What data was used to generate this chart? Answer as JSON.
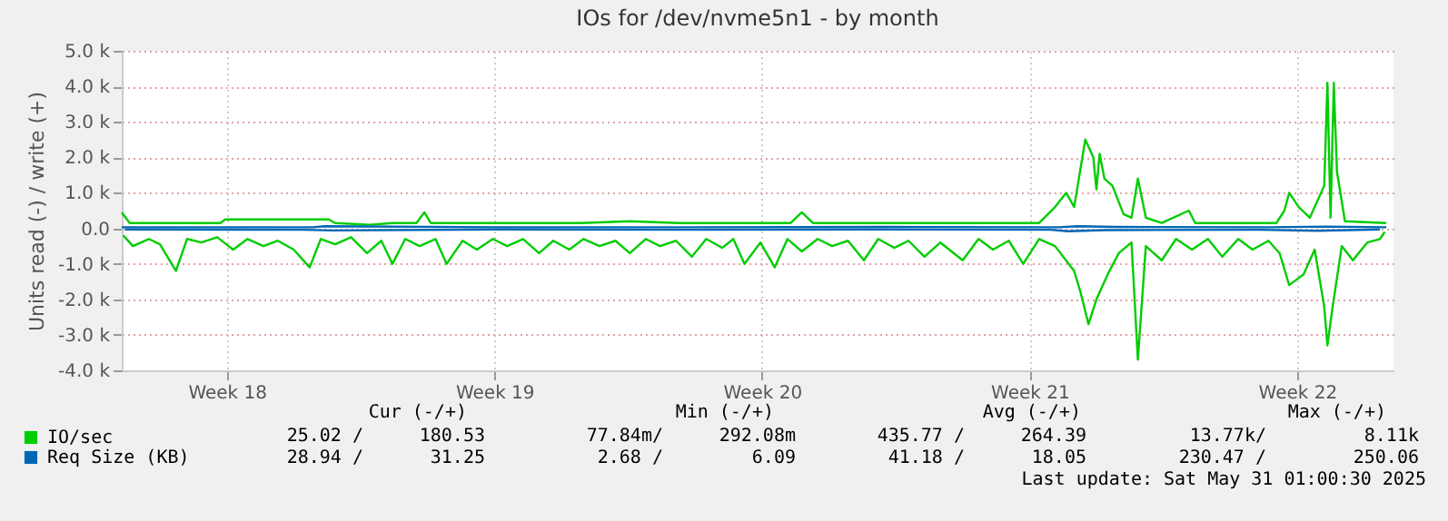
{
  "chart_data": {
    "type": "line",
    "title": "IOs for /dev/nvme5n1 - by month",
    "ylabel": "Units read (-) / write (+)",
    "xlim": [
      "2025-04-28T18:00",
      "2025-06-01T00:30"
    ],
    "xticks": [
      {
        "value": "2025-05-01T12:00",
        "label": "Week 18"
      },
      {
        "value": "2025-05-08T12:00",
        "label": "Week 19"
      },
      {
        "value": "2025-05-15T12:00",
        "label": "Week 20"
      },
      {
        "value": "2025-05-22T12:00",
        "label": "Week 21"
      },
      {
        "value": "2025-05-29T12:00",
        "label": "Week 22"
      }
    ],
    "ylim": [
      -4000,
      5000
    ],
    "yticks": [
      {
        "value": 5000,
        "label": "5.0 k"
      },
      {
        "value": 4000,
        "label": "4.0 k"
      },
      {
        "value": 3000,
        "label": "3.0 k"
      },
      {
        "value": 2000,
        "label": "2.0 k"
      },
      {
        "value": 1000,
        "label": "1.0 k"
      },
      {
        "value": 0,
        "label": "0.0"
      },
      {
        "value": -1000,
        "label": "-1.0 k"
      },
      {
        "value": -2000,
        "label": "-2.0 k"
      },
      {
        "value": -3000,
        "label": "-3.0 k"
      },
      {
        "value": -4000,
        "label": "-4.0 k"
      }
    ],
    "grid": true,
    "legend": "bottom left",
    "series": [
      {
        "name": "IO/sec",
        "color": "#00cc00",
        "x": [
          "2025-04-28T18:00",
          "2025-04-28T23:00",
          "2025-05-01T08:00",
          "2025-05-01T11:00",
          "2025-05-04T04:00",
          "2025-05-04T08:00",
          "2025-05-05T06:00",
          "2025-05-05T20:00",
          "2025-05-06T11:00",
          "2025-05-06T16:00",
          "2025-05-06T20:00",
          "2025-05-10T18:00",
          "2025-05-12T01:00",
          "2025-05-13T08:00",
          "2025-05-16T06:00",
          "2025-05-16T13:00",
          "2025-05-16T20:00",
          "2025-05-22T18:00",
          "2025-05-23T04:00",
          "2025-05-23T11:00",
          "2025-05-23T16:00",
          "2025-05-23T23:00",
          "2025-05-24T04:00",
          "2025-05-24T06:00",
          "2025-05-24T08:00",
          "2025-05-24T11:00",
          "2025-05-24T16:00",
          "2025-05-24T23:00",
          "2025-05-25T04:00",
          "2025-05-25T08:00",
          "2025-05-25T13:00",
          "2025-05-25T23:00",
          "2025-05-26T16:00",
          "2025-05-26T20:00",
          "2025-05-28T23:00",
          "2025-05-29T04:00",
          "2025-05-29T07:00",
          "2025-05-29T13:00",
          "2025-05-29T20:00",
          "2025-05-30T05:00",
          "2025-05-30T07:00",
          "2025-05-30T09:00",
          "2025-05-30T11:00",
          "2025-05-30T13:00",
          "2025-05-30T18:00",
          "2025-05-31T20:00"
        ],
        "values": [
          450,
          150,
          150,
          250,
          250,
          150,
          100,
          150,
          150,
          450,
          150,
          150,
          200,
          150,
          150,
          450,
          150,
          150,
          600,
          1000,
          600,
          2500,
          2000,
          1100,
          2100,
          1400,
          1200,
          400,
          300,
          1400,
          300,
          150,
          500,
          150,
          150,
          500,
          1000,
          600,
          300,
          1200,
          4100,
          300,
          4100,
          1600,
          200,
          150
        ]
      },
      {
        "color": "#00cc00",
        "x": [
          "2025-04-28T19:00",
          "2025-04-29T01:00",
          "2025-04-29T11:00",
          "2025-04-29T18:00",
          "2025-04-30T04:00",
          "2025-04-30T11:00",
          "2025-04-30T20:00",
          "2025-05-01T06:00",
          "2025-05-01T16:00",
          "2025-05-02T01:00",
          "2025-05-02T11:00",
          "2025-05-02T20:00",
          "2025-05-03T06:00",
          "2025-05-03T16:00",
          "2025-05-03T23:00",
          "2025-05-04T08:00",
          "2025-05-04T18:00",
          "2025-05-05T04:00",
          "2025-05-05T13:00",
          "2025-05-05T20:00",
          "2025-05-06T04:00",
          "2025-05-06T13:00",
          "2025-05-06T23:00",
          "2025-05-07T06:00",
          "2025-05-07T16:00",
          "2025-05-08T01:00",
          "2025-05-08T11:00",
          "2025-05-08T20:00",
          "2025-05-09T06:00",
          "2025-05-09T16:00",
          "2025-05-10T01:00",
          "2025-05-10T11:00",
          "2025-05-10T20:00",
          "2025-05-11T06:00",
          "2025-05-11T16:00",
          "2025-05-12T01:00",
          "2025-05-12T11:00",
          "2025-05-12T20:00",
          "2025-05-13T06:00",
          "2025-05-13T16:00",
          "2025-05-14T01:00",
          "2025-05-14T11:00",
          "2025-05-14T18:00",
          "2025-05-15T01:00",
          "2025-05-15T11:00",
          "2025-05-15T20:00",
          "2025-05-16T04:00",
          "2025-05-16T13:00",
          "2025-05-16T23:00",
          "2025-05-17T08:00",
          "2025-05-17T18:00",
          "2025-05-18T04:00",
          "2025-05-18T13:00",
          "2025-05-18T23:00",
          "2025-05-19T08:00",
          "2025-05-19T18:00",
          "2025-05-20T04:00",
          "2025-05-20T18:00",
          "2025-05-21T04:00",
          "2025-05-21T13:00",
          "2025-05-21T23:00",
          "2025-05-22T08:00",
          "2025-05-22T18:00",
          "2025-05-23T04:00",
          "2025-05-23T16:00",
          "2025-05-23T20:00",
          "2025-05-24T01:00",
          "2025-05-24T06:00",
          "2025-05-24T13:00",
          "2025-05-24T20:00",
          "2025-05-25T04:00",
          "2025-05-25T08:00",
          "2025-05-25T13:00",
          "2025-05-25T23:00",
          "2025-05-26T08:00",
          "2025-05-26T18:00",
          "2025-05-27T04:00",
          "2025-05-27T13:00",
          "2025-05-27T23:00",
          "2025-05-28T08:00",
          "2025-05-28T18:00",
          "2025-05-29T01:00",
          "2025-05-29T07:00",
          "2025-05-29T16:00",
          "2025-05-29T23:00",
          "2025-05-30T05:00",
          "2025-05-30T07:00",
          "2025-05-30T10:00",
          "2025-05-30T16:00",
          "2025-05-30T23:00",
          "2025-05-31T08:00",
          "2025-05-31T16:00",
          "2025-05-31T19:00"
        ],
        "values": [
          -200,
          -500,
          -300,
          -450,
          -1200,
          -300,
          -400,
          -250,
          -600,
          -300,
          -500,
          -350,
          -600,
          -1100,
          -300,
          -450,
          -250,
          -700,
          -350,
          -1000,
          -300,
          -500,
          -300,
          -1000,
          -350,
          -600,
          -300,
          -500,
          -300,
          -700,
          -350,
          -600,
          -300,
          -500,
          -350,
          -700,
          -300,
          -500,
          -350,
          -800,
          -300,
          -550,
          -300,
          -1000,
          -400,
          -1100,
          -300,
          -650,
          -300,
          -500,
          -350,
          -900,
          -300,
          -550,
          -350,
          -800,
          -400,
          -900,
          -300,
          -600,
          -350,
          -1000,
          -300,
          -500,
          -1200,
          -1800,
          -2700,
          -2000,
          -1300,
          -700,
          -400,
          -3700,
          -500,
          -900,
          -300,
          -600,
          -300,
          -800,
          -300,
          -600,
          -350,
          -700,
          -1600,
          -1300,
          -600,
          -2200,
          -3300,
          -2300,
          -500,
          -900,
          -400,
          -300,
          -100
        ]
      },
      {
        "name": "Req Size (KB)",
        "color": "#0066b3",
        "x": [
          "2025-04-28T18:00",
          "2025-05-03T18:00",
          "2025-05-04T01:00",
          "2025-05-08T18:00",
          "2025-05-13T18:00",
          "2025-05-18T18:00",
          "2025-05-23T06:00",
          "2025-05-23T18:00",
          "2025-05-24T18:00",
          "2025-05-28T18:00",
          "2025-05-30T06:00",
          "2025-05-31T20:00"
        ],
        "values": [
          30,
          30,
          60,
          30,
          30,
          40,
          30,
          60,
          40,
          30,
          50,
          30
        ]
      },
      {
        "color": "#0066b3",
        "x": [
          "2025-04-28T20:00",
          "2025-05-03T12:00",
          "2025-05-04T06:00",
          "2025-05-08T12:00",
          "2025-05-13T12:00",
          "2025-05-18T12:00",
          "2025-05-23T01:00",
          "2025-05-23T12:00",
          "2025-05-24T12:00",
          "2025-05-28T12:00",
          "2025-05-30T01:00",
          "2025-05-31T16:00"
        ],
        "values": [
          -30,
          -40,
          -60,
          -30,
          -40,
          -30,
          -40,
          -80,
          -50,
          -40,
          -70,
          -30
        ]
      }
    ],
    "annotations": [
      "Cur (-/+)",
      "Min (-/+)",
      "Avg (-/+)",
      "Max (-/+)",
      "25.02 /",
      "180.53",
      "77.84m/",
      "292.08m",
      "435.77 /",
      "264.39",
      "13.77k/",
      "8.11k",
      "28.94 /",
      "31.25",
      "2.68 /",
      "6.09",
      "41.18 /",
      "18.05",
      "230.47 /",
      "250.06",
      "Last update: Sat May 31 01:00:30 2025"
    ]
  }
}
